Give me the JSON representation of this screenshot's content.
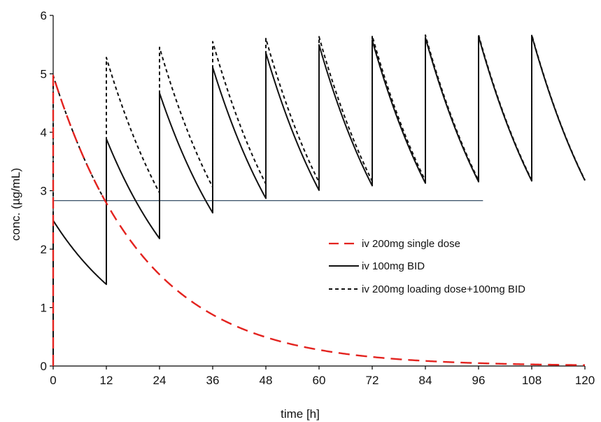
{
  "chart_data": {
    "type": "line",
    "xlabel": "time [h]",
    "ylabel": "conc. (µg/mL)",
    "xlim": [
      0,
      120
    ],
    "ylim": [
      0,
      6
    ],
    "x_ticks": [
      "0",
      "12",
      "24",
      "36",
      "48",
      "60",
      "72",
      "84",
      "96",
      "108",
      "120"
    ],
    "y_ticks": [
      "0",
      "1",
      "2",
      "3",
      "4",
      "5",
      "6"
    ],
    "legend_position": "right-middle",
    "reference_line": {
      "y": 2.83,
      "x_range": [
        0,
        97
      ]
    },
    "series": [
      {
        "name": "iv 200mg single dose",
        "style": "long-dash",
        "color": "#e3231f",
        "initial_conc": 4.97,
        "half_life_h": 14.4,
        "doses_h": [
          0
        ],
        "dose_increment": 4.97
      },
      {
        "name": "iv 100mg BID",
        "style": "solid",
        "color": "#111111",
        "initial_conc": 2.49,
        "half_life_h": 14.4,
        "doses_h": [
          0,
          12,
          24,
          36,
          48,
          60,
          72,
          84,
          96,
          108
        ],
        "dose_increment": 2.49
      },
      {
        "name": "iv 200mg loading dose+100mg BID",
        "style": "short-dash",
        "color": "#111111",
        "initial_conc": 4.97,
        "half_life_h": 14.4,
        "doses_h": [
          0,
          12,
          24,
          36,
          48,
          60,
          72,
          84,
          96,
          108
        ],
        "dose_increment": 2.49
      }
    ]
  }
}
